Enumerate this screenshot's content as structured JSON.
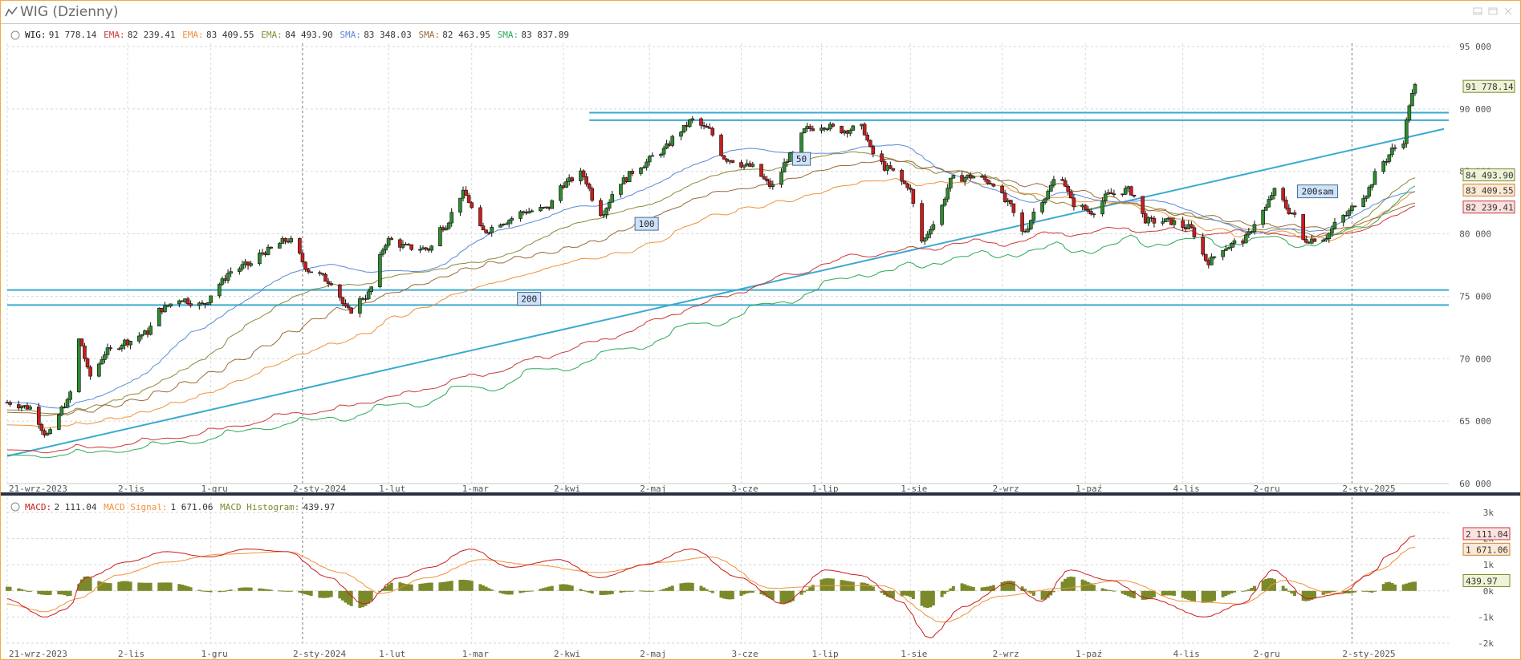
{
  "window": {
    "title": "WIG (Dzienny)",
    "icons": [
      "chart-line-icon",
      "minimize-icon",
      "restore-icon",
      "close-icon"
    ]
  },
  "colors": {
    "up": "#2e8b2e",
    "down": "#c81e1e",
    "price": "#111111",
    "ema1": "#cc3a3a",
    "ema2": "#f0913a",
    "ema3": "#8a8a3a",
    "sma1": "#5a88d8",
    "sma2": "#9a6a3a",
    "sma3": "#2aaa5a",
    "level_lines": "#3aaad0",
    "macd": "#c81e1e",
    "macd_signal": "#f0913a",
    "macd_hist": "#7a8a2a"
  },
  "chart_data": [
    {
      "type": "candlestick",
      "title": "",
      "legend": [
        {
          "label": "WIG:",
          "value": "91 778.14"
        },
        {
          "label": "EMA:",
          "value": "82 239.41"
        },
        {
          "label": "EMA:",
          "value": "83 409.55"
        },
        {
          "label": "EMA:",
          "value": "84 493.90"
        },
        {
          "label": "SMA:",
          "value": "83 348.03"
        },
        {
          "label": "SMA:",
          "value": "82 463.95"
        },
        {
          "label": "SMA:",
          "value": "83 837.89"
        }
      ],
      "y_range": [
        60000,
        95000
      ],
      "y_ticks": [
        "60 000",
        "65 000",
        "70 000",
        "75 000",
        "80 000",
        "85 000",
        "90 000",
        "95 000"
      ],
      "x_ticks": [
        "21-wrz-2023",
        "2-lis",
        "1-gru",
        "2-sty-2024",
        "1-lut",
        "1-mar",
        "2-kwi",
        "2-maj",
        "3-cze",
        "1-lip",
        "1-sie",
        "2-wrz",
        "1-paź",
        "4-lis",
        "2-gru",
        "2-sty-2025"
      ],
      "x_range": [
        "2023-09-21",
        "2025-01-24"
      ],
      "close_path": [
        [
          "2023-09-21",
          66500
        ],
        [
          "2023-09-29",
          66100
        ],
        [
          "2023-10-05",
          63900
        ],
        [
          "2023-10-12",
          66500
        ],
        [
          "2023-10-16",
          71500
        ],
        [
          "2023-10-20",
          68600
        ],
        [
          "2023-10-26",
          70600
        ],
        [
          "2023-11-02",
          71400
        ],
        [
          "2023-11-08",
          72000
        ],
        [
          "2023-11-14",
          74000
        ],
        [
          "2023-11-20",
          74800
        ],
        [
          "2023-11-28",
          74300
        ],
        [
          "2023-12-04",
          76000
        ],
        [
          "2023-12-08",
          77000
        ],
        [
          "2023-12-14",
          77500
        ],
        [
          "2023-12-20",
          78600
        ],
        [
          "2023-12-28",
          79500
        ],
        [
          "2024-01-05",
          77000
        ],
        [
          "2024-01-12",
          76200
        ],
        [
          "2024-01-18",
          73800
        ],
        [
          "2024-01-24",
          75000
        ],
        [
          "2024-02-01",
          79500
        ],
        [
          "2024-02-08",
          78900
        ],
        [
          "2024-02-15",
          78800
        ],
        [
          "2024-02-20",
          80600
        ],
        [
          "2024-02-27",
          83200
        ],
        [
          "2024-03-05",
          80200
        ],
        [
          "2024-03-12",
          81000
        ],
        [
          "2024-03-20",
          81800
        ],
        [
          "2024-03-27",
          82000
        ],
        [
          "2024-04-02",
          84000
        ],
        [
          "2024-04-08",
          84800
        ],
        [
          "2024-04-15",
          81700
        ],
        [
          "2024-04-22",
          84200
        ],
        [
          "2024-04-29",
          85500
        ],
        [
          "2024-05-06",
          86600
        ],
        [
          "2024-05-13",
          88300
        ],
        [
          "2024-05-17",
          89100
        ],
        [
          "2024-05-22",
          88400
        ],
        [
          "2024-05-29",
          86000
        ],
        [
          "2024-06-06",
          85400
        ],
        [
          "2024-06-14",
          83800
        ],
        [
          "2024-06-20",
          86200
        ],
        [
          "2024-06-26",
          88400
        ],
        [
          "2024-07-01",
          88700
        ],
        [
          "2024-07-08",
          88300
        ],
        [
          "2024-07-15",
          88500
        ],
        [
          "2024-07-19",
          86400
        ],
        [
          "2024-07-24",
          85200
        ],
        [
          "2024-07-31",
          83900
        ],
        [
          "2024-08-05",
          79400
        ],
        [
          "2024-08-09",
          80800
        ],
        [
          "2024-08-16",
          84400
        ],
        [
          "2024-08-23",
          84600
        ],
        [
          "2024-08-30",
          84100
        ],
        [
          "2024-09-04",
          82400
        ],
        [
          "2024-09-09",
          80100
        ],
        [
          "2024-09-16",
          82800
        ],
        [
          "2024-09-22",
          84800
        ],
        [
          "2024-09-27",
          82400
        ],
        [
          "2024-10-03",
          81800
        ],
        [
          "2024-10-10",
          83200
        ],
        [
          "2024-10-16",
          83500
        ],
        [
          "2024-10-23",
          81000
        ],
        [
          "2024-10-30",
          81000
        ],
        [
          "2024-11-06",
          80500
        ],
        [
          "2024-11-13",
          77800
        ],
        [
          "2024-11-18",
          78900
        ],
        [
          "2024-11-25",
          79500
        ],
        [
          "2024-12-02",
          81800
        ],
        [
          "2024-12-06",
          83400
        ],
        [
          "2024-12-12",
          81700
        ],
        [
          "2024-12-16",
          79500
        ],
        [
          "2024-12-23",
          79700
        ],
        [
          "2024-12-30",
          81400
        ],
        [
          "2025-01-06",
          83100
        ],
        [
          "2025-01-13",
          85800
        ],
        [
          "2025-01-17",
          86900
        ],
        [
          "2025-01-20",
          87500
        ],
        [
          "2025-01-22",
          90400
        ],
        [
          "2025-01-24",
          91778.14
        ]
      ],
      "moving_averages": [
        {
          "type": "EMA",
          "value": 82239.41,
          "color": "ema1"
        },
        {
          "type": "EMA",
          "value": 83409.55,
          "color": "ema2"
        },
        {
          "type": "EMA",
          "value": 84493.9,
          "color": "ema3"
        },
        {
          "type": "SMA",
          "value": 83348.03,
          "color": "sma1"
        },
        {
          "type": "SMA",
          "value": 82463.95,
          "color": "sma2"
        },
        {
          "type": "SMA",
          "value": 83837.89,
          "color": "sma3"
        }
      ],
      "horizontal_levels": [
        89700,
        89100,
        75500,
        74300
      ],
      "trendline": [
        [
          "2023-09-21",
          62200
        ],
        [
          "2025-01-29",
          88400
        ]
      ],
      "annotations": [
        {
          "text": "50",
          "x": "2024-06-24",
          "y": 86000
        },
        {
          "text": "100",
          "x": "2024-05-01",
          "y": 80800
        },
        {
          "text": "200",
          "x": "2024-03-21",
          "y": 74800
        },
        {
          "text": "200sam",
          "x": "2024-12-21",
          "y": 83400
        }
      ],
      "value_tags": [
        {
          "text": "91 778.14",
          "value": 91778.14
        },
        {
          "text": "84 493.90",
          "value": 84493.9
        },
        {
          "text": "83 409.55",
          "value": 83409.55
        },
        {
          "text": "82 239.41",
          "value": 82239.41
        }
      ]
    },
    {
      "type": "macd",
      "legend": [
        {
          "label": "MACD:",
          "value": "2 111.04"
        },
        {
          "label": "MACD Signal:",
          "value": "1 671.06"
        },
        {
          "label": "MACD Histogram:",
          "value": "439.97"
        }
      ],
      "y_range": [
        -2000,
        3000
      ],
      "y_ticks": [
        "-2k",
        "-1k",
        "0k",
        "1k",
        "2k",
        "3k"
      ],
      "x_ticks": [
        "21-wrz-2023",
        "2-lis",
        "1-gru",
        "2-sty-2024",
        "1-lut",
        "1-mar",
        "2-kwi",
        "2-maj",
        "3-cze",
        "1-lip",
        "1-sie",
        "2-wrz",
        "1-paź",
        "4-lis",
        "2-gru",
        "2-sty-2025"
      ],
      "macd_path": [
        [
          "2023-09-21",
          -300
        ],
        [
          "2023-10-05",
          -1000
        ],
        [
          "2023-10-12",
          -700
        ],
        [
          "2023-10-19",
          500
        ],
        [
          "2023-11-02",
          1100
        ],
        [
          "2023-11-16",
          1500
        ],
        [
          "2023-12-01",
          1300
        ],
        [
          "2023-12-14",
          1600
        ],
        [
          "2023-12-28",
          1500
        ],
        [
          "2024-01-12",
          500
        ],
        [
          "2024-01-24",
          -500
        ],
        [
          "2024-02-05",
          500
        ],
        [
          "2024-02-16",
          900
        ],
        [
          "2024-03-01",
          1600
        ],
        [
          "2024-03-15",
          900
        ],
        [
          "2024-04-01",
          1200
        ],
        [
          "2024-04-15",
          500
        ],
        [
          "2024-05-01",
          1000
        ],
        [
          "2024-05-17",
          1600
        ],
        [
          "2024-06-03",
          500
        ],
        [
          "2024-06-18",
          -500
        ],
        [
          "2024-07-03",
          800
        ],
        [
          "2024-07-15",
          600
        ],
        [
          "2024-07-29",
          -400
        ],
        [
          "2024-08-08",
          -1800
        ],
        [
          "2024-08-20",
          -600
        ],
        [
          "2024-09-05",
          300
        ],
        [
          "2024-09-16",
          -400
        ],
        [
          "2024-09-26",
          800
        ],
        [
          "2024-10-10",
          400
        ],
        [
          "2024-10-24",
          -300
        ],
        [
          "2024-11-12",
          -1000
        ],
        [
          "2024-11-25",
          -500
        ],
        [
          "2024-12-06",
          800
        ],
        [
          "2024-12-18",
          -300
        ],
        [
          "2024-12-30",
          -100
        ],
        [
          "2025-01-08",
          600
        ],
        [
          "2025-01-16",
          1400
        ],
        [
          "2025-01-24",
          2111.04
        ]
      ],
      "signal_path": [
        [
          "2023-09-21",
          -500
        ],
        [
          "2023-10-05",
          -800
        ],
        [
          "2023-10-16",
          -300
        ],
        [
          "2023-10-30",
          600
        ],
        [
          "2023-11-16",
          1100
        ],
        [
          "2023-12-05",
          1400
        ],
        [
          "2023-12-28",
          1500
        ],
        [
          "2024-01-16",
          700
        ],
        [
          "2024-01-30",
          -100
        ],
        [
          "2024-02-15",
          500
        ],
        [
          "2024-03-05",
          1200
        ],
        [
          "2024-03-22",
          1000
        ],
        [
          "2024-04-15",
          700
        ],
        [
          "2024-05-08",
          1100
        ],
        [
          "2024-05-24",
          1300
        ],
        [
          "2024-06-14",
          100
        ],
        [
          "2024-07-05",
          200
        ],
        [
          "2024-07-22",
          200
        ],
        [
          "2024-08-13",
          -1200
        ],
        [
          "2024-09-02",
          -200
        ],
        [
          "2024-09-23",
          100
        ],
        [
          "2024-10-14",
          400
        ],
        [
          "2024-11-05",
          -400
        ],
        [
          "2024-11-25",
          -500
        ],
        [
          "2024-12-10",
          400
        ],
        [
          "2024-12-27",
          -100
        ],
        [
          "2025-01-12",
          800
        ],
        [
          "2025-01-24",
          1671.06
        ]
      ],
      "histogram_value": 439.97,
      "value_tags": [
        {
          "text": "2 111.04",
          "value": 2111.04
        },
        {
          "text": "1 671.06",
          "value": 1671.06
        },
        {
          "text": "439.97",
          "value": 439.97
        }
      ]
    }
  ]
}
